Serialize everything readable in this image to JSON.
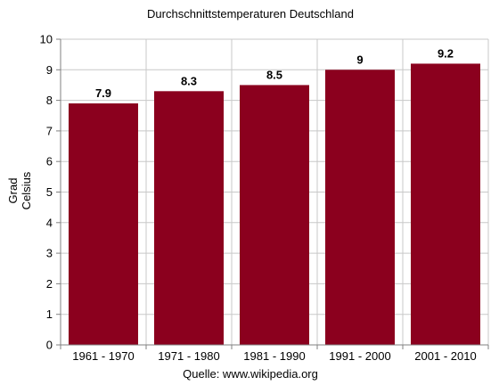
{
  "chart_data": {
    "type": "bar",
    "title": "Durchschnittstemperaturen Deutschland",
    "ylabel": "Grad Celsius",
    "ylabel_lines": [
      "Grad",
      "Celsius"
    ],
    "xlabel": "",
    "source": "Quelle: www.wikipedia.org",
    "categories": [
      "1961 - 1970",
      "1971 - 1980",
      "1981 - 1990",
      "1991 - 2000",
      "2001 - 2010"
    ],
    "values": [
      7.9,
      8.3,
      8.5,
      9,
      9.2
    ],
    "data_labels": [
      "7.9",
      "8.3",
      "8.5",
      "9",
      "9.2"
    ],
    "ylim": [
      0,
      10
    ],
    "yticks": [
      0,
      1,
      2,
      3,
      4,
      5,
      6,
      7,
      8,
      9,
      10
    ],
    "grid": true,
    "legend": "none",
    "colors": {
      "bar": "#8B001E",
      "grid": "#c8c8c8",
      "axis": "#808080"
    }
  }
}
